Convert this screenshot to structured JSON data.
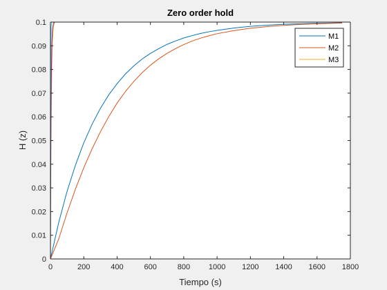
{
  "chart_data": {
    "type": "line",
    "title": "Zero order hold",
    "xlabel": "Tiempo (s)",
    "ylabel": "H (z)",
    "xlim": [
      0,
      1800
    ],
    "ylim": [
      0,
      0.1
    ],
    "xticks": [
      0,
      200,
      400,
      600,
      800,
      1000,
      1200,
      1400,
      1600,
      1800
    ],
    "yticks": [
      0,
      0.01,
      0.02,
      0.03,
      0.04,
      0.05,
      0.06,
      0.07,
      0.08,
      0.09,
      0.1
    ],
    "xtick_labels": [
      "0",
      "200",
      "400",
      "600",
      "800",
      "1000",
      "1200",
      "1400",
      "1600",
      "1800"
    ],
    "ytick_labels": [
      "0",
      "0.01",
      "0.02",
      "0.03",
      "0.04",
      "0.05",
      "0.06",
      "0.07",
      "0.08",
      "0.09",
      "0.1"
    ],
    "grid": false,
    "legend_position": "top-right",
    "series": [
      {
        "name": "M1",
        "color": "#0072BD",
        "x": [
          0,
          50,
          100,
          150,
          200,
          250,
          300,
          350,
          400,
          450,
          500,
          550,
          600,
          650,
          700,
          750,
          800,
          850,
          900,
          950,
          1000,
          1100,
          1200,
          1300,
          1400,
          1500,
          1600,
          1750
        ],
        "y": [
          0,
          0.0155,
          0.0286,
          0.0396,
          0.049,
          0.0569,
          0.0636,
          0.0693,
          0.074,
          0.0781,
          0.0815,
          0.0844,
          0.0868,
          0.0888,
          0.0906,
          0.092,
          0.0933,
          0.0943,
          0.0952,
          0.0959,
          0.0965,
          0.0975,
          0.0982,
          0.0987,
          0.0991,
          0.0993,
          0.0995,
          0.0997
        ]
      },
      {
        "name": "M2",
        "color": "#D95319",
        "x": [
          0,
          50,
          100,
          150,
          200,
          250,
          300,
          350,
          400,
          450,
          500,
          550,
          600,
          650,
          700,
          750,
          800,
          850,
          900,
          950,
          1000,
          1100,
          1200,
          1300,
          1400,
          1500,
          1600,
          1750
        ],
        "y": [
          0,
          0.0085,
          0.0195,
          0.0295,
          0.0385,
          0.0465,
          0.0537,
          0.0601,
          0.0658,
          0.0707,
          0.0749,
          0.0786,
          0.0818,
          0.0845,
          0.0868,
          0.0888,
          0.0905,
          0.092,
          0.0932,
          0.0942,
          0.0951,
          0.0964,
          0.0974,
          0.0981,
          0.0986,
          0.099,
          0.0993,
          0.0996
        ]
      },
      {
        "name": "M3",
        "color": "#EDB120",
        "x": [
          0,
          1,
          2,
          3,
          5,
          8,
          12,
          18,
          25
        ],
        "y": [
          0,
          0.018,
          0.033,
          0.046,
          0.064,
          0.081,
          0.092,
          0.098,
          0.1
        ]
      }
    ],
    "extra_lines": [
      {
        "color": "#7E2F8E",
        "x": [
          0,
          1,
          2,
          3,
          5,
          8,
          12,
          18,
          25
        ],
        "y": [
          0,
          0.022,
          0.04,
          0.055,
          0.075,
          0.09,
          0.097,
          0.0995,
          0.1
        ]
      },
      {
        "color": "#4DBEEE",
        "x": [
          0,
          0.5,
          1,
          2,
          4,
          8,
          16,
          25
        ],
        "y": [
          0,
          0.04,
          0.065,
          0.088,
          0.098,
          0.1,
          0.1,
          0.1
        ]
      }
    ]
  }
}
